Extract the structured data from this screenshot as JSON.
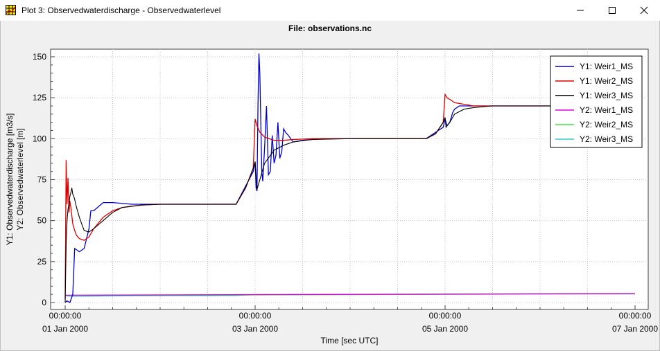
{
  "window": {
    "title": "Plot 3: Observedwaterdischarge - Observedwaterlevel",
    "icon": "grid-plot-icon",
    "controls": [
      "minimize-icon",
      "maximize-icon",
      "close-icon"
    ]
  },
  "chart_data": {
    "type": "line",
    "title": "File: observations.nc",
    "xlabel": "Time [sec UTC]",
    "ylabel_lines": [
      "Y1: Observedwaterdischarge [m3/s]",
      "Y2: Observedwaterlevel [m]"
    ],
    "x_unit": "days since 01 Jan 2000 00:00",
    "xlim": [
      0,
      6
    ],
    "ylim": [
      -2,
      153
    ],
    "x_ticks": [
      {
        "x": 0,
        "time": "00:00:00",
        "date": "01 Jan 2000"
      },
      {
        "x": 2,
        "time": "00:00:00",
        "date": "03 Jan 2000"
      },
      {
        "x": 4,
        "time": "00:00:00",
        "date": "05 Jan 2000"
      },
      {
        "x": 6,
        "time": "00:00:00",
        "date": "07 Jan 2000"
      }
    ],
    "y_ticks": [
      0,
      25,
      50,
      75,
      100,
      125,
      150
    ],
    "grid": true,
    "legend_position": "top-right",
    "series": [
      {
        "name": "Y1: Weir1_MS",
        "color": "#0000cc",
        "x": [
          0,
          0.02,
          0.05,
          0.08,
          0.1,
          0.15,
          0.2,
          0.25,
          0.27,
          0.3,
          0.32,
          0.4,
          0.5,
          0.7,
          1.0,
          1.5,
          1.8,
          1.98,
          2.0,
          2.01,
          2.02,
          2.03,
          2.04,
          2.05,
          2.06,
          2.07,
          2.08,
          2.1,
          2.12,
          2.14,
          2.16,
          2.18,
          2.2,
          2.22,
          2.24,
          2.26,
          2.28,
          2.3,
          2.32,
          2.35,
          2.4,
          2.5,
          2.7,
          3.0,
          3.5,
          3.8,
          3.98,
          4.0,
          4.02,
          4.05,
          4.08,
          4.1,
          4.15,
          4.2,
          4.3,
          4.5,
          5.0,
          6.0
        ],
        "y": [
          0,
          1,
          0,
          5,
          33,
          31,
          33,
          45,
          56,
          56,
          57,
          61,
          61,
          60,
          60,
          60,
          60,
          80,
          86,
          70,
          68,
          120,
          152,
          140,
          110,
          80,
          74,
          95,
          120,
          78,
          80,
          102,
          85,
          90,
          110,
          88,
          92,
          106,
          104,
          102,
          98,
          99,
          100,
          100,
          100,
          100,
          107,
          112,
          108,
          110,
          116,
          118,
          120,
          120,
          120,
          120,
          120,
          120
        ]
      },
      {
        "name": "Y1: Weir2_MS",
        "color": "#dd0000",
        "x": [
          0,
          0.01,
          0.02,
          0.03,
          0.04,
          0.05,
          0.06,
          0.08,
          0.1,
          0.12,
          0.15,
          0.2,
          0.25,
          0.3,
          0.4,
          0.5,
          0.6,
          0.8,
          1.0,
          1.5,
          1.8,
          1.9,
          1.98,
          2.0,
          2.02,
          2.05,
          2.1,
          2.2,
          2.3,
          2.4,
          2.6,
          3.0,
          3.5,
          3.8,
          3.9,
          3.98,
          4.0,
          4.02,
          4.05,
          4.1,
          4.2,
          4.3,
          4.5,
          5.0,
          6.0
        ],
        "y": [
          2,
          87,
          60,
          76,
          55,
          62,
          58,
          48,
          44,
          41,
          39,
          38,
          40,
          45,
          52,
          56,
          58,
          59.5,
          60,
          60,
          60,
          70,
          82,
          112,
          108,
          104,
          101,
          99,
          99,
          99.5,
          100,
          100,
          100,
          100,
          103,
          110,
          127,
          125,
          124,
          122,
          121,
          120,
          120,
          120,
          120
        ]
      },
      {
        "name": "Y1: Weir3_MS",
        "color": "#000000",
        "x": [
          0,
          0.01,
          0.02,
          0.03,
          0.04,
          0.05,
          0.06,
          0.07,
          0.08,
          0.09,
          0.1,
          0.12,
          0.15,
          0.18,
          0.2,
          0.25,
          0.3,
          0.4,
          0.5,
          0.6,
          0.8,
          1.0,
          1.5,
          1.8,
          1.9,
          1.98,
          2.0,
          2.02,
          2.05,
          2.1,
          2.2,
          2.3,
          2.4,
          2.6,
          3.0,
          3.5,
          3.8,
          3.9,
          3.98,
          4.0,
          4.01,
          4.05,
          4.1,
          4.2,
          4.3,
          4.5,
          5.0,
          6.0
        ],
        "y": [
          0,
          35,
          50,
          57,
          60,
          65,
          67,
          70,
          66,
          65,
          63,
          58,
          52,
          47,
          44,
          43,
          45,
          50,
          55,
          58,
          59.5,
          60,
          60,
          60,
          70,
          82,
          86,
          69,
          75,
          85,
          93,
          96,
          98,
          99.5,
          100,
          100,
          100,
          103,
          110,
          113,
          107,
          110,
          115,
          118,
          119,
          120,
          120,
          120
        ]
      },
      {
        "name": "Y2: Weir1_MS",
        "color": "#dd00dd",
        "x": [
          0,
          6
        ],
        "y": [
          4.5,
          5.5
        ]
      },
      {
        "name": "Y2: Weir2_MS",
        "color": "#44dd44",
        "x": [
          0,
          6
        ],
        "y": [
          4.4,
          5.3
        ]
      },
      {
        "name": "Y2: Weir3_MS",
        "color": "#33cccc",
        "x": [
          0,
          0.1,
          0.5,
          1.0,
          1.5,
          1.8,
          2.0,
          2.5,
          3.0,
          3.5,
          3.8,
          4.0,
          4.5,
          5.0,
          6.0
        ],
        "y": [
          4,
          3.8,
          4,
          4.2,
          4.2,
          4.3,
          4.8,
          4.9,
          4.9,
          5.0,
          5.0,
          5.1,
          5.2,
          5.3,
          5.3
        ]
      }
    ]
  }
}
